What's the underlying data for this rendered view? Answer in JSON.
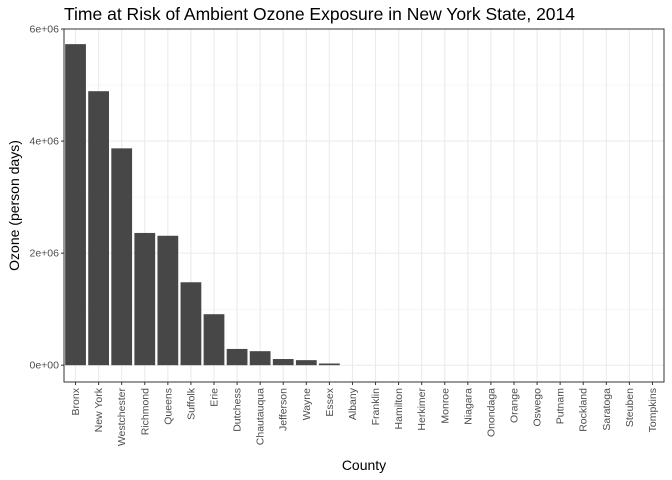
{
  "chart_data": {
    "type": "bar",
    "title": "Time at Risk of Ambient Ozone Exposure in New York State, 2014",
    "xlabel": "County",
    "ylabel": "Ozone (person days)",
    "categories": [
      "Bronx",
      "New York",
      "Westchester",
      "Richmond",
      "Queens",
      "Suffolk",
      "Erie",
      "Dutchess",
      "Chautauqua",
      "Jefferson",
      "Wayne",
      "Essex",
      "Albany",
      "Franklin",
      "Hamilton",
      "Herkimer",
      "Monroe",
      "Niagara",
      "Onondaga",
      "Orange",
      "Oswego",
      "Putnam",
      "Rockland",
      "Saratoga",
      "Steuben",
      "Tompkins"
    ],
    "values": [
      5730000,
      4890000,
      3870000,
      2360000,
      2310000,
      1480000,
      910000,
      290000,
      250000,
      110000,
      90000,
      30000,
      0,
      0,
      0,
      0,
      0,
      0,
      0,
      0,
      0,
      0,
      0,
      0,
      0,
      0
    ],
    "ylim": [
      -300000,
      6000000
    ],
    "yticks": [
      0,
      2000000,
      4000000,
      6000000
    ],
    "ytick_labels": [
      "0e+00",
      "2e+06",
      "4e+06",
      "6e+06"
    ],
    "grid": true,
    "bar_color": "#474747",
    "theme": "bw"
  }
}
